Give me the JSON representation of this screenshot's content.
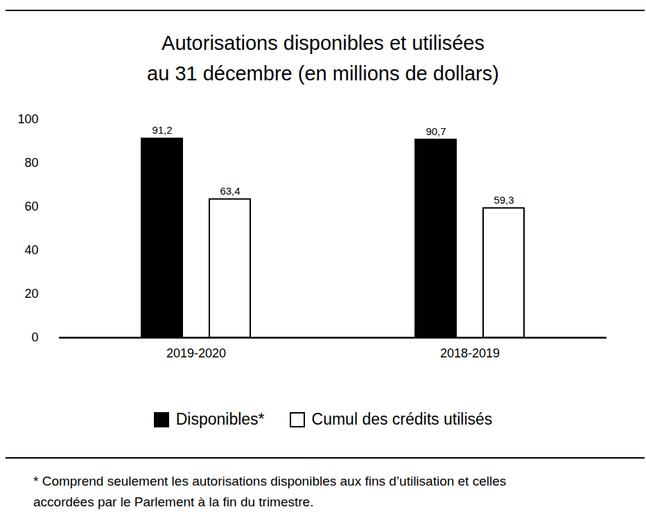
{
  "chart_data": {
    "type": "bar",
    "title": "Autorisations disponibles et utilisées\nau 31 décembre (en millions de dollars)",
    "categories": [
      "2019-2020",
      "2018-2019"
    ],
    "series": [
      {
        "name": "Disponibles*",
        "color": "#000000",
        "values": [
          91.2,
          90.7
        ],
        "value_labels": [
          "91,2",
          "90,7"
        ]
      },
      {
        "name": "Cumul des crédits utilisés",
        "color": "#ffffff",
        "values": [
          63.4,
          59.3
        ],
        "value_labels": [
          "63,4",
          "59,3"
        ]
      }
    ],
    "ylim": [
      0,
      100
    ],
    "yticks": [
      0,
      20,
      40,
      60,
      80,
      100
    ],
    "grid": false,
    "legend": "bottom",
    "data_labels": true,
    "annotations": [
      "* Comprend seulement les autorisations disponibles aux fins d’utilisation et celles\naccordées par le Parlement à la fin du trimestre."
    ]
  }
}
